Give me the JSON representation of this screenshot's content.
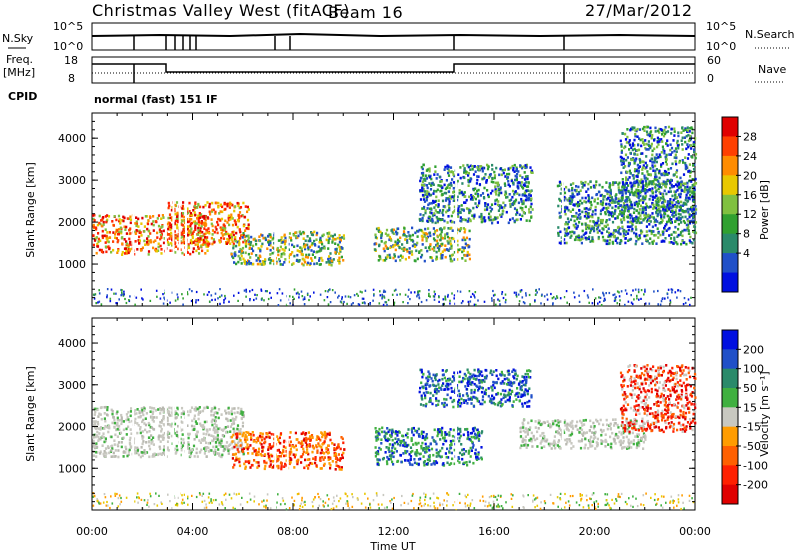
{
  "header": {
    "station": "Christmas Valley West (fitACF)",
    "beam": "Beam 16",
    "date": "27/Mar/2012"
  },
  "top_panels": {
    "nsky_label": "N.Sky",
    "nsky_ticks": [
      "10^5",
      "10^0"
    ],
    "nsearch_label": "N.Search",
    "nsearch_ticks": [
      "10^5",
      "10^0"
    ],
    "freq_label_line1": "Freq.",
    "freq_label_line2": "[MHz]",
    "freq_ticks": [
      "18",
      "8"
    ],
    "nave_label": "Nave",
    "nave_ticks": [
      "60",
      "0"
    ],
    "cpid_label": "CPID",
    "cpid_text": "normal (fast) 151 IF"
  },
  "chart_data": [
    {
      "type": "heatmap",
      "panel": "power",
      "ylabel": "Slant Range [km]",
      "xlabel": "",
      "ylim": [
        0,
        4600
      ],
      "yticks": [
        1000,
        2000,
        3000,
        4000
      ],
      "xlim_hours": [
        0,
        24
      ],
      "colorbar_label": "Power [dB]",
      "colorbar_ticks": [
        "28",
        "24",
        "20",
        "16",
        "12",
        "8",
        "4"
      ],
      "colorbar_colors": [
        "#e00000",
        "#ff4000",
        "#ff8c00",
        "#e8c800",
        "#80c040",
        "#30a030",
        "#2a8a6a",
        "#2050c8",
        "#0010e0"
      ],
      "echo_regions": [
        {
          "t0": 0.0,
          "t1": 4.6,
          "r0": 1250,
          "r1": 2200,
          "level": "high"
        },
        {
          "t0": 3.0,
          "t1": 6.2,
          "r0": 1500,
          "r1": 2500,
          "level": "high"
        },
        {
          "t0": 5.5,
          "t1": 10.0,
          "r0": 1000,
          "r1": 1800,
          "level": "medium"
        },
        {
          "t0": 11.2,
          "t1": 15.0,
          "r0": 1100,
          "r1": 1900,
          "level": "medium"
        },
        {
          "t0": 13.0,
          "t1": 17.5,
          "r0": 2000,
          "r1": 3400,
          "level": "low"
        },
        {
          "t0": 18.5,
          "t1": 24.0,
          "r0": 1500,
          "r1": 3000,
          "level": "low"
        },
        {
          "t0": 21.0,
          "t1": 24.0,
          "r0": 2000,
          "r1": 4300,
          "level": "low"
        }
      ]
    },
    {
      "type": "heatmap",
      "panel": "velocity",
      "ylabel": "Slant Range [km]",
      "xlabel": "Time UT",
      "ylim": [
        0,
        4600
      ],
      "yticks": [
        1000,
        2000,
        3000,
        4000
      ],
      "xlim_hours": [
        0,
        24
      ],
      "xticks": [
        "00:00",
        "04:00",
        "08:00",
        "12:00",
        "16:00",
        "20:00",
        "00:00"
      ],
      "colorbar_label": "Velocity [m s⁻¹]",
      "colorbar_ticks": [
        "200",
        "100",
        "50",
        "15",
        "-15",
        "-50",
        "-100",
        "-200"
      ],
      "colorbar_colors": [
        "#0010e0",
        "#2050c8",
        "#2a8a6a",
        "#40b040",
        "#c8c8c0",
        "#ff9c00",
        "#ff6000",
        "#ff2000",
        "#e00000"
      ],
      "echo_regions": [
        {
          "t0": 0.0,
          "t1": 6.0,
          "r0": 1300,
          "r1": 2500,
          "level": "ground"
        },
        {
          "t0": 5.5,
          "t1": 10.0,
          "r0": 1000,
          "r1": 1900,
          "level": "negative"
        },
        {
          "t0": 11.2,
          "t1": 15.5,
          "r0": 1100,
          "r1": 2000,
          "level": "positive"
        },
        {
          "t0": 13.0,
          "t1": 17.5,
          "r0": 2500,
          "r1": 3400,
          "level": "strong-positive"
        },
        {
          "t0": 17.0,
          "t1": 22.0,
          "r0": 1500,
          "r1": 2200,
          "level": "ground"
        },
        {
          "t0": 21.0,
          "t1": 24.0,
          "r0": 1900,
          "r1": 3500,
          "level": "strong-negative"
        }
      ]
    }
  ]
}
